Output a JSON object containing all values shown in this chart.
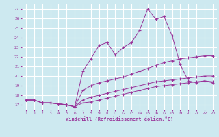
{
  "xlabel": "Windchill (Refroidissement éolien,°C)",
  "xlim": [
    -0.5,
    23.5
  ],
  "ylim": [
    16.5,
    27.5
  ],
  "yticks": [
    17,
    18,
    19,
    20,
    21,
    22,
    23,
    24,
    25,
    26,
    27
  ],
  "xticks": [
    0,
    1,
    2,
    3,
    4,
    5,
    6,
    7,
    8,
    9,
    10,
    11,
    12,
    13,
    14,
    15,
    16,
    17,
    18,
    19,
    20,
    21,
    22,
    23
  ],
  "background_color": "#cde9f0",
  "line_color": "#993399",
  "grid_color": "#ffffff",
  "series": [
    [
      17.5,
      17.5,
      17.2,
      17.2,
      17.1,
      17.0,
      16.8,
      20.5,
      21.8,
      23.2,
      23.5,
      22.2,
      23.0,
      23.5,
      24.8,
      27.0,
      25.9,
      26.2,
      24.2,
      21.2,
      19.5,
      19.3,
      19.5,
      19.3
    ],
    [
      17.5,
      17.5,
      17.2,
      17.2,
      17.1,
      17.0,
      16.8,
      18.5,
      19.0,
      19.3,
      19.5,
      19.7,
      19.9,
      20.2,
      20.5,
      20.8,
      21.1,
      21.4,
      21.6,
      21.8,
      21.9,
      22.0,
      22.1,
      22.1
    ],
    [
      17.5,
      17.5,
      17.2,
      17.2,
      17.1,
      17.0,
      16.8,
      17.5,
      17.8,
      18.0,
      18.2,
      18.4,
      18.6,
      18.8,
      19.0,
      19.2,
      19.4,
      19.5,
      19.6,
      19.7,
      19.8,
      19.9,
      20.0,
      20.0
    ],
    [
      17.5,
      17.5,
      17.2,
      17.2,
      17.1,
      17.0,
      16.8,
      17.2,
      17.3,
      17.5,
      17.7,
      17.9,
      18.1,
      18.3,
      18.5,
      18.7,
      18.9,
      19.0,
      19.1,
      19.2,
      19.3,
      19.4,
      19.5,
      19.4
    ]
  ]
}
